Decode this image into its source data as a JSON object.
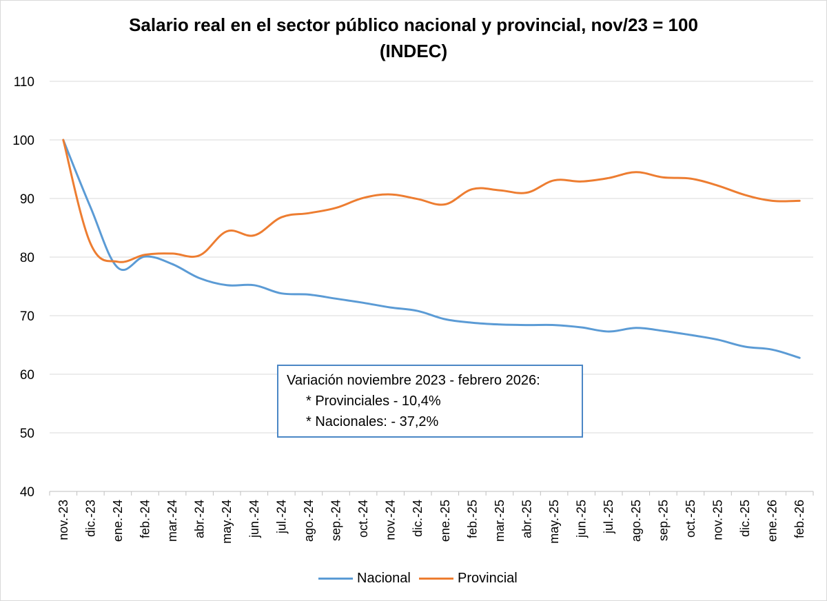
{
  "chart_data": {
    "type": "line",
    "title": "Salario real en el sector público nacional y provincial, nov/23 = 100",
    "subtitle": "(INDEC)",
    "categories": [
      "nov.-23",
      "dic.-23",
      "ene.-24",
      "feb.-24",
      "mar.-24",
      "abr.-24",
      "may.-24",
      "jun.-24",
      "jul.-24",
      "ago.-24",
      "sep.-24",
      "oct.-24",
      "nov.-24",
      "dic.-24",
      "ene.-25",
      "feb.-25",
      "mar.-25",
      "abr.-25",
      "may.-25",
      "jun.-25",
      "jul.-25",
      "ago.-25",
      "sep.-25",
      "oct.-25",
      "nov.-25",
      "dic.-25",
      "ene.-26",
      "feb.-26"
    ],
    "series": [
      {
        "name": "Nacional",
        "color": "#5b9bd5",
        "values": [
          100,
          88.5,
          78.2,
          80.1,
          78.8,
          76.4,
          75.2,
          75.2,
          73.8,
          73.6,
          72.9,
          72.2,
          71.4,
          70.8,
          69.4,
          68.8,
          68.5,
          68.4,
          68.4,
          68.0,
          67.3,
          67.9,
          67.4,
          66.7,
          65.9,
          64.7,
          64.2,
          62.8
        ]
      },
      {
        "name": "Provincial",
        "color": "#ed7d31",
        "values": [
          100,
          82.3,
          79.2,
          80.4,
          80.6,
          80.3,
          84.4,
          83.7,
          86.8,
          87.5,
          88.4,
          90.1,
          90.7,
          89.9,
          89.0,
          91.6,
          91.4,
          91.0,
          93.1,
          92.9,
          93.5,
          94.5,
          93.6,
          93.4,
          92.2,
          90.6,
          89.6,
          89.6
        ]
      }
    ],
    "ylim": [
      40,
      110
    ],
    "yticks": [
      40,
      50,
      60,
      70,
      80,
      90,
      100,
      110
    ],
    "grid": true,
    "legend": "bottom"
  },
  "annotation": {
    "line1": "Variación noviembre 2023 - febrero 2026:",
    "line2": "* Provinciales - 10,4%",
    "line3": "* Nacionales:  - 37,2%"
  }
}
